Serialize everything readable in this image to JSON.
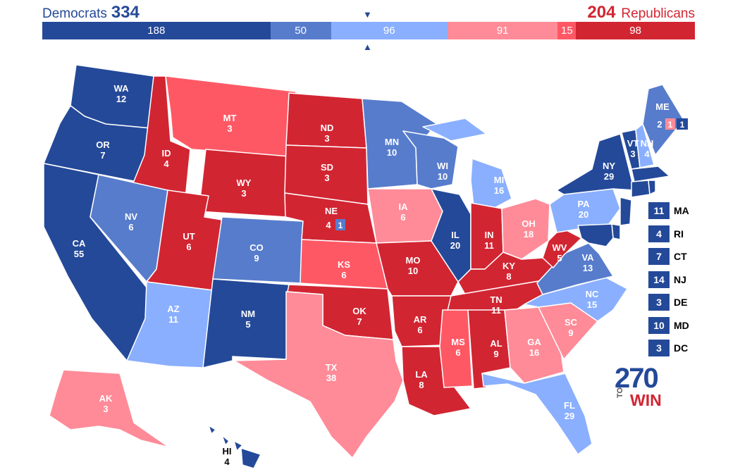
{
  "header": {
    "dem_label": "Democrats",
    "dem_total": "334",
    "rep_total": "204",
    "rep_label": "Republicans"
  },
  "bar_segments": [
    {
      "value": "188",
      "color": "#244999"
    },
    {
      "value": "50",
      "color": "#577ccc"
    },
    {
      "value": "96",
      "color": "#8aafff"
    },
    {
      "value": "91",
      "color": "#ff8b98"
    },
    {
      "value": "15",
      "color": "#ff5865"
    },
    {
      "value": "98",
      "color": "#d22532"
    }
  ],
  "colors": {
    "safe_d": "#244999",
    "likely_d": "#577ccc",
    "lean_d": "#8aafff",
    "lean_r": "#ff8b98",
    "likely_r": "#ff5865",
    "safe_r": "#d22532",
    "border": "#ffffff"
  },
  "states": [
    {
      "abbr": "WA",
      "ev": "12",
      "rating": "safe_d"
    },
    {
      "abbr": "OR",
      "ev": "7",
      "rating": "safe_d"
    },
    {
      "abbr": "CA",
      "ev": "55",
      "rating": "safe_d"
    },
    {
      "abbr": "ID",
      "ev": "4",
      "rating": "safe_r"
    },
    {
      "abbr": "NV",
      "ev": "6",
      "rating": "likely_d"
    },
    {
      "abbr": "MT",
      "ev": "3",
      "rating": "likely_r"
    },
    {
      "abbr": "WY",
      "ev": "3",
      "rating": "safe_r"
    },
    {
      "abbr": "UT",
      "ev": "6",
      "rating": "safe_r"
    },
    {
      "abbr": "AZ",
      "ev": "11",
      "rating": "lean_d"
    },
    {
      "abbr": "CO",
      "ev": "9",
      "rating": "likely_d"
    },
    {
      "abbr": "NM",
      "ev": "5",
      "rating": "safe_d"
    },
    {
      "abbr": "ND",
      "ev": "3",
      "rating": "safe_r"
    },
    {
      "abbr": "SD",
      "ev": "3",
      "rating": "safe_r"
    },
    {
      "abbr": "NE",
      "ev": "4",
      "rating": "safe_r"
    },
    {
      "abbr": "KS",
      "ev": "6",
      "rating": "likely_r"
    },
    {
      "abbr": "OK",
      "ev": "7",
      "rating": "safe_r"
    },
    {
      "abbr": "TX",
      "ev": "38",
      "rating": "lean_r"
    },
    {
      "abbr": "MN",
      "ev": "10",
      "rating": "likely_d"
    },
    {
      "abbr": "IA",
      "ev": "6",
      "rating": "lean_r"
    },
    {
      "abbr": "MO",
      "ev": "10",
      "rating": "safe_r"
    },
    {
      "abbr": "AR",
      "ev": "6",
      "rating": "safe_r"
    },
    {
      "abbr": "LA",
      "ev": "8",
      "rating": "safe_r"
    },
    {
      "abbr": "WI",
      "ev": "10",
      "rating": "likely_d"
    },
    {
      "abbr": "IL",
      "ev": "20",
      "rating": "safe_d"
    },
    {
      "abbr": "MI",
      "ev": "16",
      "rating": "lean_d"
    },
    {
      "abbr": "IN",
      "ev": "11",
      "rating": "safe_r"
    },
    {
      "abbr": "OH",
      "ev": "18",
      "rating": "lean_r"
    },
    {
      "abbr": "KY",
      "ev": "8",
      "rating": "safe_r"
    },
    {
      "abbr": "TN",
      "ev": "11",
      "rating": "safe_r"
    },
    {
      "abbr": "MS",
      "ev": "6",
      "rating": "likely_r"
    },
    {
      "abbr": "AL",
      "ev": "9",
      "rating": "safe_r"
    },
    {
      "abbr": "GA",
      "ev": "16",
      "rating": "lean_r"
    },
    {
      "abbr": "FL",
      "ev": "29",
      "rating": "lean_d"
    },
    {
      "abbr": "SC",
      "ev": "9",
      "rating": "lean_r"
    },
    {
      "abbr": "NC",
      "ev": "15",
      "rating": "lean_d"
    },
    {
      "abbr": "VA",
      "ev": "13",
      "rating": "likely_d"
    },
    {
      "abbr": "WV",
      "ev": "5",
      "rating": "safe_r"
    },
    {
      "abbr": "PA",
      "ev": "20",
      "rating": "lean_d"
    },
    {
      "abbr": "NY",
      "ev": "29",
      "rating": "safe_d"
    },
    {
      "abbr": "VT",
      "ev": "3",
      "rating": "safe_d"
    },
    {
      "abbr": "NH",
      "ev": "4",
      "rating": "lean_d"
    },
    {
      "abbr": "ME",
      "ev": "",
      "rating": "likely_d"
    },
    {
      "abbr": "AK",
      "ev": "3",
      "rating": "lean_r"
    },
    {
      "abbr": "HI",
      "ev": "4",
      "rating": "safe_d"
    }
  ],
  "districts": {
    "ne": {
      "statewide": "4",
      "district": "1"
    },
    "me": {
      "statewide": "2",
      "district_r": "1",
      "district_d": "1"
    }
  },
  "legend": [
    {
      "ev": "11",
      "abbr": "MA"
    },
    {
      "ev": "4",
      "abbr": "RI"
    },
    {
      "ev": "7",
      "abbr": "CT"
    },
    {
      "ev": "14",
      "abbr": "NJ"
    },
    {
      "ev": "3",
      "abbr": "DE"
    },
    {
      "ev": "10",
      "abbr": "MD"
    },
    {
      "ev": "3",
      "abbr": "DC"
    }
  ],
  "logo": {
    "num": "270",
    "to": "TO",
    "win": "WIN"
  }
}
